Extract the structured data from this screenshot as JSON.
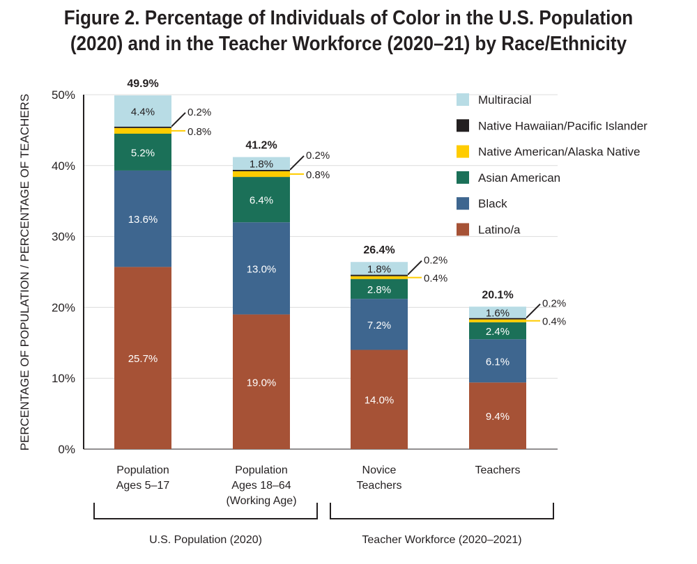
{
  "chart_data": {
    "type": "bar",
    "stacked": true,
    "title_lines": [
      "Figure 2. Percentage of Individuals of Color in the U.S. Population",
      "(2020) and in the Teacher Workforce (2020–21) by Race/Ethnicity"
    ],
    "ylabel": "PERCENTAGE OF POPULATION / PERCENTAGE OF TEACHERS",
    "xlabel": "",
    "ylim": [
      0,
      50
    ],
    "yticks": [
      "0%",
      "10%",
      "20%",
      "30%",
      "40%",
      "50%"
    ],
    "grid": true,
    "legend_position": "top-right",
    "categories": [
      [
        "Population",
        "Ages 5–17"
      ],
      [
        "Population",
        "Ages 18–64",
        "(Working Age)"
      ],
      [
        "Novice",
        "Teachers"
      ],
      [
        "Teachers"
      ]
    ],
    "totals": [
      "49.9%",
      "41.2%",
      "26.4%",
      "20.1%"
    ],
    "groups": [
      {
        "label": "U.S. Population (2020)",
        "categories": [
          0,
          1
        ]
      },
      {
        "label": "Teacher Workforce (2020–2021)",
        "categories": [
          2,
          3
        ]
      }
    ],
    "series": [
      {
        "name": "Latino/a",
        "color": "#A65236",
        "values": [
          25.7,
          19.0,
          14.0,
          9.4
        ],
        "labels": [
          "25.7%",
          "19.0%",
          "14.0%",
          "9.4%"
        ]
      },
      {
        "name": "Black",
        "color": "#3E668F",
        "values": [
          13.6,
          13.0,
          7.2,
          6.1
        ],
        "labels": [
          "13.6%",
          "13.0%",
          "7.2%",
          "6.1%"
        ]
      },
      {
        "name": "Asian American",
        "color": "#1B7058",
        "values": [
          5.2,
          6.4,
          2.8,
          2.4
        ],
        "labels": [
          "5.2%",
          "6.4%",
          "2.8%",
          "2.4%"
        ]
      },
      {
        "name": "Native American/Alaska Native",
        "color": "#FFCC00",
        "values": [
          0.8,
          0.8,
          0.4,
          0.4
        ],
        "labels": [
          "0.8%",
          "0.8%",
          "0.4%",
          "0.4%"
        ]
      },
      {
        "name": "Native Hawaiian/Pacific Islander",
        "color": "#231F20",
        "values": [
          0.2,
          0.2,
          0.2,
          0.2
        ],
        "labels": [
          "0.2%",
          "0.2%",
          "0.2%",
          "0.2%"
        ]
      },
      {
        "name": "Multiracial",
        "color": "#B8DCE5",
        "values": [
          4.4,
          1.8,
          1.8,
          1.6
        ],
        "labels": [
          "4.4%",
          "1.8%",
          "1.8%",
          "1.6%"
        ]
      }
    ]
  }
}
